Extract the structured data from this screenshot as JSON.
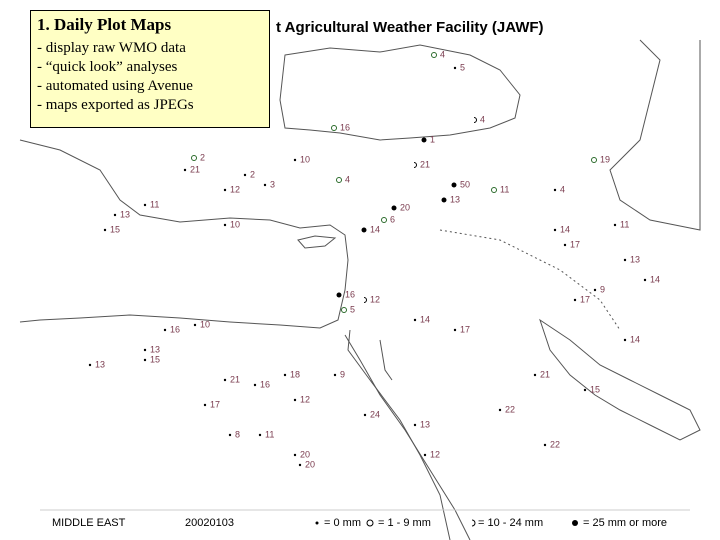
{
  "callout": {
    "title": "1. Daily Plot Maps",
    "items": [
      "- display raw WMO data",
      "- “quick look” analyses",
      "- automated using Avenue",
      "- maps exported as JPEGs"
    ]
  },
  "header": {
    "title": "t Agricultural Weather Facility (JAWF)"
  },
  "stations": [
    4,
    5,
    16,
    4,
    1,
    21,
    4,
    20,
    13,
    50,
    11,
    10,
    3,
    12,
    21,
    2,
    4,
    15,
    11,
    13,
    2,
    14,
    6,
    10,
    19,
    14,
    11,
    17,
    13,
    9,
    16,
    5,
    12,
    14,
    10,
    13,
    15,
    16,
    18,
    14,
    17,
    13,
    21,
    22,
    24,
    20,
    17,
    21,
    16,
    9,
    13,
    12,
    20,
    8,
    11,
    15,
    14,
    17,
    12,
    22
  ],
  "footer": {
    "region": "MIDDLE EAST",
    "date": "20020103",
    "legend": [
      "= 0 mm",
      "= 1 - 9 mm",
      "= 10 - 24 mm",
      "= 25 mm or more"
    ]
  }
}
